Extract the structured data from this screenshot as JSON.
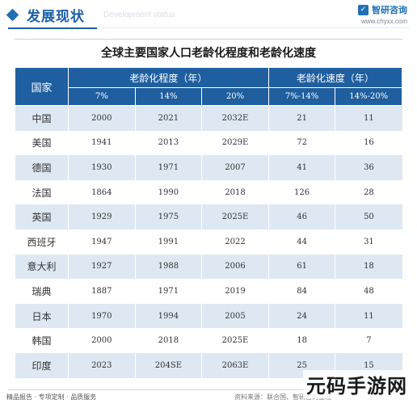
{
  "header": {
    "section_title": "发展现状",
    "section_subtitle": "Development status",
    "brand_name": "智研咨询",
    "brand_url": "www.chyxx.com"
  },
  "table": {
    "title": "全球主要国家人口老龄化程度和老龄化速度",
    "header_country": "国家",
    "group_aging_degree": "老龄化程度（年）",
    "group_aging_speed": "老龄化速度（年）",
    "sub_headers": [
      "7%",
      "14%",
      "20%",
      "7%-14%",
      "14%-20%"
    ],
    "rows": [
      {
        "country": "中国",
        "p7": "2000",
        "p14": "2021",
        "p20": "2032E",
        "s1": "21",
        "s2": "11"
      },
      {
        "country": "美国",
        "p7": "1941",
        "p14": "2013",
        "p20": "2029E",
        "s1": "72",
        "s2": "16"
      },
      {
        "country": "德国",
        "p7": "1930",
        "p14": "1971",
        "p20": "2007",
        "s1": "41",
        "s2": "36"
      },
      {
        "country": "法国",
        "p7": "1864",
        "p14": "1990",
        "p20": "2018",
        "s1": "126",
        "s2": "28"
      },
      {
        "country": "英国",
        "p7": "1929",
        "p14": "1975",
        "p20": "2025E",
        "s1": "46",
        "s2": "50"
      },
      {
        "country": "西班牙",
        "p7": "1947",
        "p14": "1991",
        "p20": "2022",
        "s1": "44",
        "s2": "31"
      },
      {
        "country": "意大利",
        "p7": "1927",
        "p14": "1988",
        "p20": "2006",
        "s1": "61",
        "s2": "18"
      },
      {
        "country": "瑞典",
        "p7": "1887",
        "p14": "1971",
        "p20": "2019",
        "s1": "84",
        "s2": "48"
      },
      {
        "country": "日本",
        "p7": "1970",
        "p14": "1994",
        "p20": "2005",
        "s1": "24",
        "s2": "11"
      },
      {
        "country": "韩国",
        "p7": "2000",
        "p14": "2018",
        "p20": "2025E",
        "s1": "18",
        "s2": "7"
      },
      {
        "country": "印度",
        "p7": "2023",
        "p14": "204SE",
        "p20": "2063E",
        "s1": "25",
        "s2": "15"
      }
    ]
  },
  "footer": {
    "left_text": "精品报告 · 专项定制 · 品质服务",
    "source_text": "资料来源：联合国、智研咨询整理"
  },
  "overlay": {
    "corner_stamp": "元码手游网",
    "watermark_text": "智研咨询"
  },
  "colors": {
    "header_blue": "#1f5f9f",
    "row_stripe": "#dde8f3",
    "title_blue": "#1b5fa5"
  }
}
